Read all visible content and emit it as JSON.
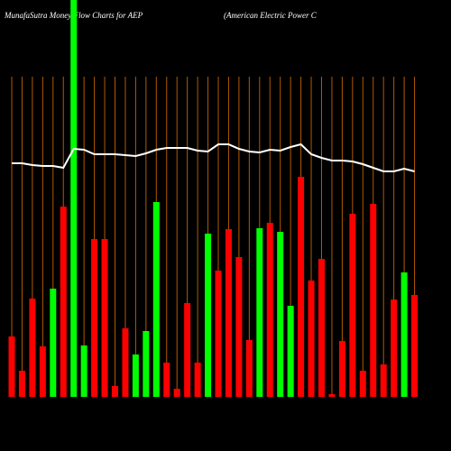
{
  "chart_data": {
    "type": "money-flow",
    "title": "MunafaSutra  Money  Flow  Charts for AEP",
    "subtitle": "(American  Electric  Power C",
    "categories": [
      null,
      null,
      null,
      null,
      null,
      null,
      null,
      null,
      null,
      null,
      null,
      null,
      null,
      null,
      null,
      null,
      null,
      null,
      null,
      null,
      null,
      null,
      null,
      null,
      null,
      null,
      null,
      null,
      null,
      null,
      null,
      null,
      null,
      null,
      null,
      null,
      null,
      null,
      null,
      null
    ],
    "values": [
      67,
      29,
      109,
      56,
      120,
      211,
      440,
      57,
      175,
      175,
      12,
      76,
      47,
      73,
      216,
      38,
      9,
      104,
      38,
      181,
      140,
      186,
      155,
      63,
      187,
      193,
      183,
      101,
      244,
      129,
      153,
      3,
      62,
      203,
      29,
      214,
      36,
      108,
      138,
      113
    ],
    "bar_colors": [
      "#ff0000",
      "#ff0000",
      "#ff0000",
      "#ff0000",
      "#00ff00",
      "#ff0000",
      "#00ff00",
      "#00ff00",
      "#ff0000",
      "#ff0000",
      "#ff0000",
      "#ff0000",
      "#00ff00",
      "#00ff00",
      "#00ff00",
      "#ff0000",
      "#ff0000",
      "#ff0000",
      "#ff0000",
      "#00ff00",
      "#ff0000",
      "#ff0000",
      "#ff0000",
      "#ff0000",
      "#00ff00",
      "#ff0000",
      "#00ff00",
      "#00ff00",
      "#ff0000",
      "#ff0000",
      "#ff0000",
      "#ff0000",
      "#ff0000",
      "#ff0000",
      "#ff0000",
      "#ff0000",
      "#ff0000",
      "#ff0000",
      "#00ff00",
      "#ff0000"
    ],
    "line_values": [
      259,
      259,
      257,
      256,
      256,
      254,
      275,
      274,
      269,
      269,
      269,
      268,
      267,
      270,
      274,
      276,
      276,
      276,
      273,
      272,
      280,
      280,
      275,
      272,
      271,
      274,
      273,
      277,
      280,
      269,
      265,
      262,
      262,
      261,
      258,
      254,
      250,
      250,
      253,
      250
    ],
    "line_color": "#ffffff",
    "grid_color": "#b35900",
    "ylim": [
      0,
      440
    ]
  }
}
